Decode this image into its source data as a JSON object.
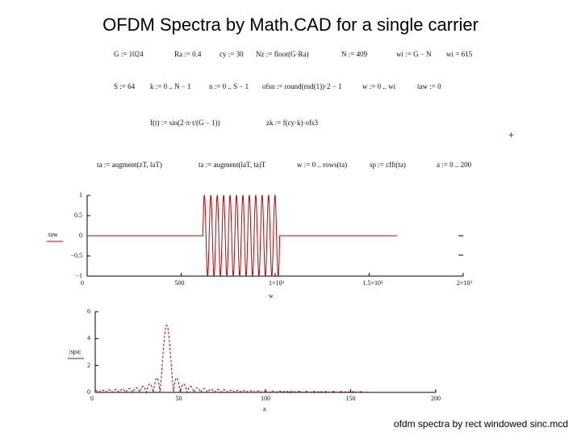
{
  "title": "OFDM Spectra by Math.CAD for a single carrier",
  "footer": "ofdm spectra by rect windowed sinc.mcd",
  "marker": "+",
  "equations": {
    "row1": [
      "G := 1024",
      "Ra := 0.4",
      "cy := 30",
      "Nz := floor(G·Ra)",
      "N := 409",
      "wi := G − N",
      "wi = 615"
    ],
    "row2": [
      "S := 64",
      "k := 0 .. N − 1",
      "n := 0 .. S − 1",
      "ofsn := round(rnd(1))·2 − 1",
      "w := 0 .. wi",
      "taw := 0"
    ],
    "row3": [
      "f(t) := sin(2·π·t/(G − 1))",
      "zk := f(cy·k)·ofs3"
    ],
    "row4": [
      "ta := augment(zT, laT)",
      "ta := augment(laT, ta)T",
      "w := 0 .. rows(ta)",
      "sp := cfft(ta)",
      "a := 0 .. 200"
    ]
  },
  "chart_data": [
    {
      "type": "line",
      "title": "",
      "ylabel": "taw",
      "xlabel": "w",
      "xlim": [
        0,
        2000
      ],
      "ylim": [
        -1,
        1
      ],
      "x_ticks": [
        "0",
        "500",
        "1×10³",
        "1.5×10³",
        "2×10³"
      ],
      "y_ticks": [
        "1",
        "0.5",
        "0",
        "−0.5",
        "−1"
      ],
      "series": [
        {
          "segments": [
            {
              "x_start": 0,
              "x_end": 615,
              "kind": "constant",
              "value": 0
            },
            {
              "x_start": 615,
              "x_end": 1024,
              "kind": "oscillation",
              "cycles_per_sample": 0.0293,
              "amplitude": 1
            },
            {
              "x_start": 1024,
              "x_end": 1650,
              "kind": "constant",
              "value": 0
            }
          ]
        }
      ],
      "color": "#c00000",
      "grid": false
    },
    {
      "type": "line",
      "title": "",
      "ylabel": "|spa|",
      "xlabel": "a",
      "xlim": [
        0,
        200
      ],
      "ylim": [
        0,
        6
      ],
      "x_ticks": [
        "0",
        "50",
        "100",
        "150",
        "200"
      ],
      "y_ticks": [
        "6",
        "4",
        "2",
        "0"
      ],
      "series": [
        {
          "kind": "sinc_magnitude",
          "peak_x": 42,
          "peak_y": 5.0,
          "main_lobe_halfwidth": 4,
          "x_end": 160
        }
      ],
      "color": "#c00000",
      "grid": false
    }
  ]
}
